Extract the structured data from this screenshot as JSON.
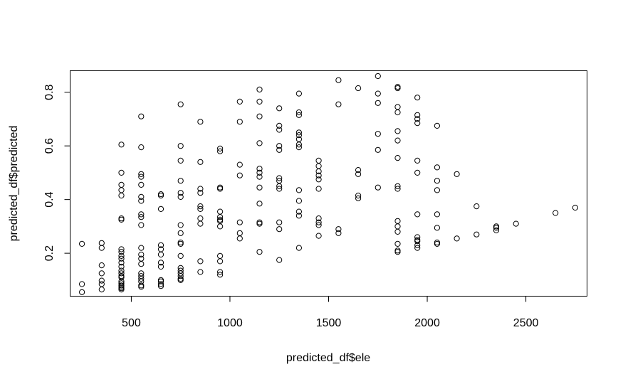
{
  "chart_data": {
    "type": "scatter",
    "title": "",
    "xlabel": "predicted_df$ele",
    "ylabel": "predicted_df$predicted",
    "xlim": [
      190,
      2810
    ],
    "ylim": [
      0.04,
      0.88
    ],
    "x_ticks": [
      500,
      1000,
      1500,
      2000,
      2500
    ],
    "x_tick_labels": [
      "500",
      "1000",
      "1500",
      "2000",
      "2500"
    ],
    "y_ticks": [
      0.2,
      0.4,
      0.6,
      0.8
    ],
    "y_tick_labels": [
      "0.2",
      "0.4",
      "0.6",
      "0.8"
    ],
    "grid": false,
    "legend": "none",
    "marker": "open-circle",
    "points": [
      [
        250,
        0.235
      ],
      [
        250,
        0.085
      ],
      [
        250,
        0.055
      ],
      [
        350,
        0.238
      ],
      [
        350,
        0.22
      ],
      [
        350,
        0.155
      ],
      [
        350,
        0.125
      ],
      [
        350,
        0.098
      ],
      [
        350,
        0.085
      ],
      [
        350,
        0.065
      ],
      [
        450,
        0.605
      ],
      [
        450,
        0.5
      ],
      [
        450,
        0.455
      ],
      [
        450,
        0.435
      ],
      [
        450,
        0.415
      ],
      [
        450,
        0.33
      ],
      [
        450,
        0.325
      ],
      [
        450,
        0.215
      ],
      [
        450,
        0.205
      ],
      [
        450,
        0.19
      ],
      [
        450,
        0.18
      ],
      [
        450,
        0.165
      ],
      [
        450,
        0.15
      ],
      [
        450,
        0.135
      ],
      [
        450,
        0.125
      ],
      [
        450,
        0.115
      ],
      [
        450,
        0.11
      ],
      [
        450,
        0.095
      ],
      [
        450,
        0.088
      ],
      [
        450,
        0.08
      ],
      [
        450,
        0.075
      ],
      [
        450,
        0.07
      ],
      [
        450,
        0.065
      ],
      [
        550,
        0.71
      ],
      [
        550,
        0.595
      ],
      [
        550,
        0.495
      ],
      [
        550,
        0.485
      ],
      [
        550,
        0.455
      ],
      [
        550,
        0.41
      ],
      [
        550,
        0.395
      ],
      [
        550,
        0.345
      ],
      [
        550,
        0.335
      ],
      [
        550,
        0.305
      ],
      [
        550,
        0.22
      ],
      [
        550,
        0.195
      ],
      [
        550,
        0.18
      ],
      [
        550,
        0.16
      ],
      [
        550,
        0.125
      ],
      [
        550,
        0.115
      ],
      [
        550,
        0.105
      ],
      [
        550,
        0.095
      ],
      [
        550,
        0.08
      ],
      [
        550,
        0.075
      ],
      [
        650,
        0.42
      ],
      [
        650,
        0.415
      ],
      [
        650,
        0.365
      ],
      [
        650,
        0.23
      ],
      [
        650,
        0.215
      ],
      [
        650,
        0.195
      ],
      [
        650,
        0.165
      ],
      [
        650,
        0.15
      ],
      [
        650,
        0.1
      ],
      [
        650,
        0.095
      ],
      [
        650,
        0.085
      ],
      [
        650,
        0.078
      ],
      [
        750,
        0.755
      ],
      [
        750,
        0.6
      ],
      [
        750,
        0.545
      ],
      [
        750,
        0.47
      ],
      [
        750,
        0.425
      ],
      [
        750,
        0.41
      ],
      [
        750,
        0.305
      ],
      [
        750,
        0.275
      ],
      [
        750,
        0.24
      ],
      [
        750,
        0.235
      ],
      [
        750,
        0.19
      ],
      [
        750,
        0.145
      ],
      [
        750,
        0.135
      ],
      [
        750,
        0.125
      ],
      [
        750,
        0.115
      ],
      [
        750,
        0.105
      ],
      [
        750,
        0.1
      ],
      [
        850,
        0.69
      ],
      [
        850,
        0.54
      ],
      [
        850,
        0.44
      ],
      [
        850,
        0.425
      ],
      [
        850,
        0.375
      ],
      [
        850,
        0.365
      ],
      [
        850,
        0.33
      ],
      [
        850,
        0.31
      ],
      [
        850,
        0.17
      ],
      [
        850,
        0.13
      ],
      [
        950,
        0.59
      ],
      [
        950,
        0.58
      ],
      [
        950,
        0.445
      ],
      [
        950,
        0.44
      ],
      [
        950,
        0.355
      ],
      [
        950,
        0.335
      ],
      [
        950,
        0.325
      ],
      [
        950,
        0.32
      ],
      [
        950,
        0.3
      ],
      [
        950,
        0.19
      ],
      [
        950,
        0.17
      ],
      [
        950,
        0.13
      ],
      [
        950,
        0.12
      ],
      [
        1050,
        0.765
      ],
      [
        1050,
        0.69
      ],
      [
        1050,
        0.53
      ],
      [
        1050,
        0.49
      ],
      [
        1050,
        0.315
      ],
      [
        1050,
        0.275
      ],
      [
        1050,
        0.255
      ],
      [
        1150,
        0.81
      ],
      [
        1150,
        0.765
      ],
      [
        1150,
        0.71
      ],
      [
        1150,
        0.61
      ],
      [
        1150,
        0.515
      ],
      [
        1150,
        0.5
      ],
      [
        1150,
        0.485
      ],
      [
        1150,
        0.445
      ],
      [
        1150,
        0.385
      ],
      [
        1150,
        0.315
      ],
      [
        1150,
        0.31
      ],
      [
        1150,
        0.205
      ],
      [
        1250,
        0.74
      ],
      [
        1250,
        0.675
      ],
      [
        1250,
        0.66
      ],
      [
        1250,
        0.6
      ],
      [
        1250,
        0.585
      ],
      [
        1250,
        0.48
      ],
      [
        1250,
        0.47
      ],
      [
        1250,
        0.45
      ],
      [
        1250,
        0.44
      ],
      [
        1250,
        0.315
      ],
      [
        1250,
        0.29
      ],
      [
        1250,
        0.175
      ],
      [
        1350,
        0.795
      ],
      [
        1350,
        0.725
      ],
      [
        1350,
        0.715
      ],
      [
        1350,
        0.65
      ],
      [
        1350,
        0.64
      ],
      [
        1350,
        0.625
      ],
      [
        1350,
        0.605
      ],
      [
        1350,
        0.595
      ],
      [
        1350,
        0.435
      ],
      [
        1350,
        0.395
      ],
      [
        1350,
        0.355
      ],
      [
        1350,
        0.34
      ],
      [
        1350,
        0.22
      ],
      [
        1450,
        0.545
      ],
      [
        1450,
        0.525
      ],
      [
        1450,
        0.505
      ],
      [
        1450,
        0.49
      ],
      [
        1450,
        0.475
      ],
      [
        1450,
        0.44
      ],
      [
        1450,
        0.33
      ],
      [
        1450,
        0.315
      ],
      [
        1450,
        0.305
      ],
      [
        1450,
        0.265
      ],
      [
        1550,
        0.845
      ],
      [
        1550,
        0.755
      ],
      [
        1550,
        0.29
      ],
      [
        1550,
        0.275
      ],
      [
        1650,
        0.815
      ],
      [
        1650,
        0.51
      ],
      [
        1650,
        0.495
      ],
      [
        1650,
        0.415
      ],
      [
        1650,
        0.405
      ],
      [
        1750,
        0.86
      ],
      [
        1750,
        0.795
      ],
      [
        1750,
        0.76
      ],
      [
        1750,
        0.645
      ],
      [
        1750,
        0.585
      ],
      [
        1750,
        0.445
      ],
      [
        1850,
        0.82
      ],
      [
        1850,
        0.815
      ],
      [
        1850,
        0.745
      ],
      [
        1850,
        0.725
      ],
      [
        1850,
        0.655
      ],
      [
        1850,
        0.62
      ],
      [
        1850,
        0.555
      ],
      [
        1850,
        0.45
      ],
      [
        1850,
        0.44
      ],
      [
        1850,
        0.32
      ],
      [
        1850,
        0.3
      ],
      [
        1850,
        0.28
      ],
      [
        1850,
        0.235
      ],
      [
        1850,
        0.21
      ],
      [
        1850,
        0.205
      ],
      [
        1950,
        0.78
      ],
      [
        1950,
        0.715
      ],
      [
        1950,
        0.7
      ],
      [
        1950,
        0.685
      ],
      [
        1950,
        0.545
      ],
      [
        1950,
        0.5
      ],
      [
        1950,
        0.345
      ],
      [
        1950,
        0.26
      ],
      [
        1950,
        0.25
      ],
      [
        1950,
        0.245
      ],
      [
        1950,
        0.23
      ],
      [
        1950,
        0.22
      ],
      [
        2050,
        0.675
      ],
      [
        2050,
        0.52
      ],
      [
        2050,
        0.47
      ],
      [
        2050,
        0.435
      ],
      [
        2050,
        0.345
      ],
      [
        2050,
        0.295
      ],
      [
        2050,
        0.24
      ],
      [
        2050,
        0.235
      ],
      [
        2150,
        0.495
      ],
      [
        2150,
        0.255
      ],
      [
        2250,
        0.375
      ],
      [
        2250,
        0.27
      ],
      [
        2350,
        0.3
      ],
      [
        2350,
        0.295
      ],
      [
        2350,
        0.285
      ],
      [
        2450,
        0.31
      ],
      [
        2650,
        0.35
      ],
      [
        2750,
        0.37
      ]
    ]
  }
}
